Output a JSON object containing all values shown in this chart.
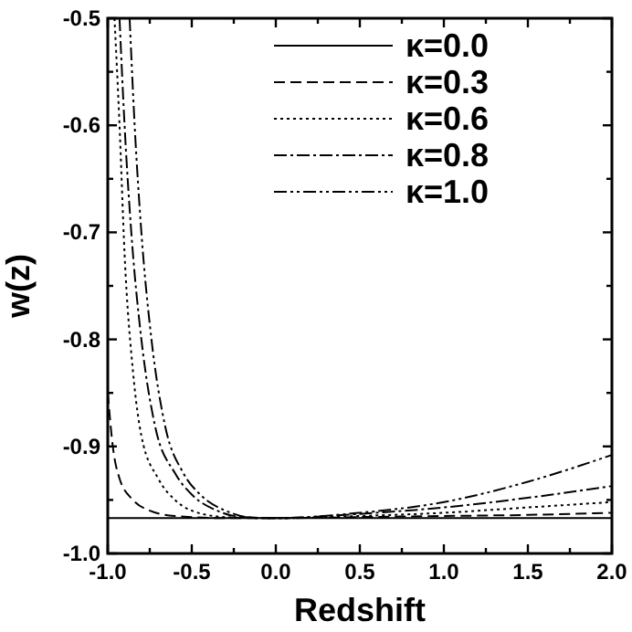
{
  "chart_data": {
    "type": "line",
    "xlabel": "Redshift",
    "ylabel": "w(z)",
    "xlim": [
      -1.0,
      2.0
    ],
    "ylim": [
      -1.0,
      -0.5
    ],
    "xticks": [
      {
        "value": -1.0,
        "label": "-1.0"
      },
      {
        "value": -0.75,
        "label": null
      },
      {
        "value": -0.5,
        "label": "-0.5"
      },
      {
        "value": -0.25,
        "label": null
      },
      {
        "value": 0.0,
        "label": "0.0"
      },
      {
        "value": 0.25,
        "label": null
      },
      {
        "value": 0.5,
        "label": "0.5"
      },
      {
        "value": 0.75,
        "label": null
      },
      {
        "value": 1.0,
        "label": "1.0"
      },
      {
        "value": 1.25,
        "label": null
      },
      {
        "value": 1.5,
        "label": "1.5"
      },
      {
        "value": 1.75,
        "label": null
      },
      {
        "value": 2.0,
        "label": "2.0"
      }
    ],
    "yticks": [
      {
        "value": -1.0,
        "label": "-1.0"
      },
      {
        "value": -0.95,
        "label": null
      },
      {
        "value": -0.9,
        "label": "-0.9"
      },
      {
        "value": -0.85,
        "label": null
      },
      {
        "value": -0.8,
        "label": "-0.8"
      },
      {
        "value": -0.75,
        "label": null
      },
      {
        "value": -0.7,
        "label": "-0.7"
      },
      {
        "value": -0.65,
        "label": null
      },
      {
        "value": -0.6,
        "label": "-0.6"
      },
      {
        "value": -0.55,
        "label": null
      },
      {
        "value": -0.5,
        "label": "-0.5"
      }
    ],
    "legend": "top right",
    "grid": false,
    "marker": "none",
    "series": [
      {
        "name": "κ=0.0",
        "color": "#000000",
        "line_style": "solid",
        "x": [
          -1.0,
          2.0
        ],
        "values": [
          -0.967,
          -0.967
        ]
      },
      {
        "name": "κ=0.3",
        "color": "#000000",
        "line_style": "dashed",
        "x": [
          -1.0,
          -0.97,
          -0.93,
          -0.85,
          -0.75,
          -0.6,
          -0.3,
          0.0,
          0.5,
          1.0,
          1.5,
          2.0
        ],
        "values": [
          -0.85,
          -0.9,
          -0.93,
          -0.95,
          -0.96,
          -0.965,
          -0.967,
          -0.967,
          -0.966,
          -0.965,
          -0.964,
          -0.962
        ]
      },
      {
        "name": "κ=0.6",
        "color": "#000000",
        "line_style": "dotted",
        "x": [
          -0.96,
          -0.93,
          -0.9,
          -0.85,
          -0.8,
          -0.7,
          -0.6,
          -0.5,
          -0.3,
          0.0,
          0.5,
          1.0,
          1.5,
          2.0
        ],
        "values": [
          -0.5,
          -0.6,
          -0.72,
          -0.83,
          -0.89,
          -0.93,
          -0.95,
          -0.96,
          -0.966,
          -0.967,
          -0.965,
          -0.962,
          -0.957,
          -0.952
        ]
      },
      {
        "name": "κ=0.8",
        "color": "#000000",
        "line_style": "dashdot",
        "x": [
          -0.93,
          -0.9,
          -0.86,
          -0.8,
          -0.72,
          -0.6,
          -0.5,
          -0.35,
          -0.2,
          0.0,
          0.5,
          1.0,
          1.5,
          2.0
        ],
        "values": [
          -0.5,
          -0.6,
          -0.7,
          -0.8,
          -0.88,
          -0.925,
          -0.945,
          -0.96,
          -0.966,
          -0.967,
          -0.963,
          -0.957,
          -0.948,
          -0.937
        ]
      },
      {
        "name": "κ=1.0",
        "color": "#000000",
        "line_style": "dashdotdot",
        "x": [
          -0.87,
          -0.84,
          -0.8,
          -0.74,
          -0.66,
          -0.55,
          -0.45,
          -0.3,
          -0.1,
          0.0,
          0.5,
          1.0,
          1.5,
          2.0
        ],
        "values": [
          -0.5,
          -0.6,
          -0.7,
          -0.8,
          -0.88,
          -0.925,
          -0.945,
          -0.96,
          -0.967,
          -0.967,
          -0.962,
          -0.952,
          -0.933,
          -0.908
        ]
      }
    ]
  }
}
